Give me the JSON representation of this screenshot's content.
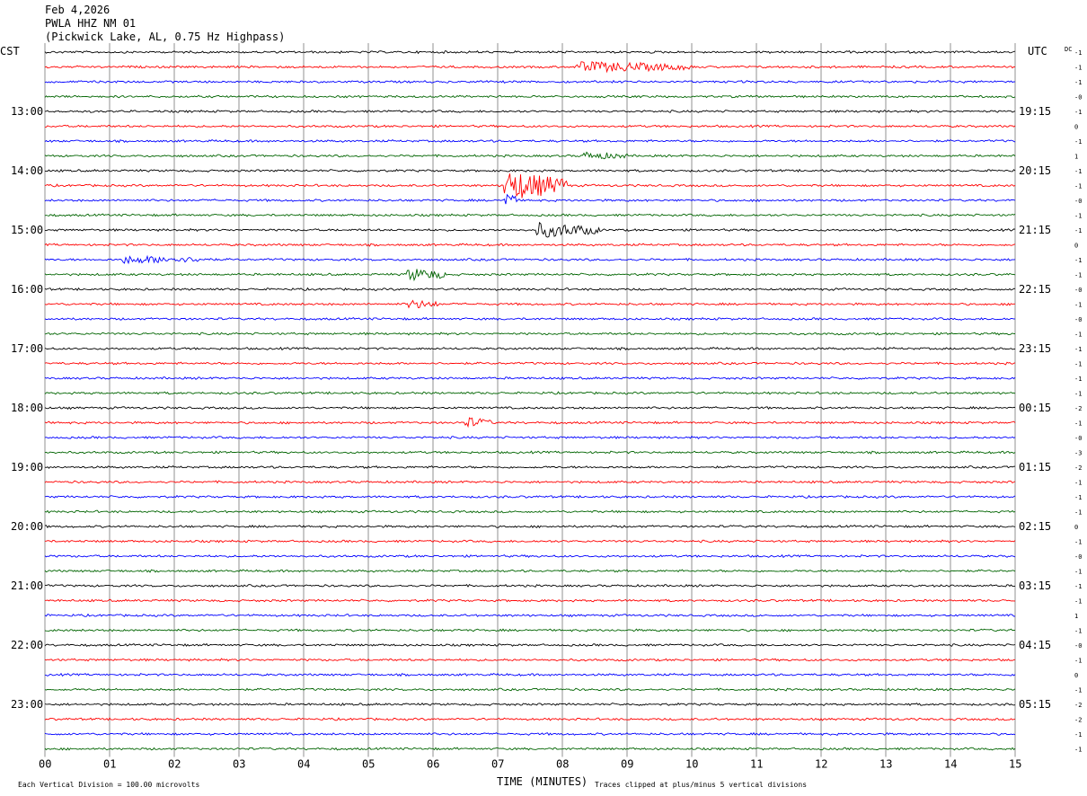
{
  "header": {
    "date": "Feb 4,2026",
    "station": "PWLA HHZ NM 01",
    "location": "(Pickwick Lake, AL, 0.75 Hz Highpass)"
  },
  "left_tz": "CST",
  "right_tz": "UTC",
  "dc_label": "DC",
  "chart_data": {
    "type": "helicorder",
    "title": "",
    "xlabel": "TIME (MINUTES)",
    "xlim": [
      0,
      15
    ],
    "x_ticks": [
      "00",
      "01",
      "02",
      "03",
      "04",
      "05",
      "06",
      "07",
      "08",
      "09",
      "10",
      "11",
      "12",
      "13",
      "14",
      "15"
    ],
    "trace_colors": [
      "#000000",
      "#ff0000",
      "#0000ff",
      "#006400"
    ],
    "trace_count": 48,
    "left_time_labels": [
      {
        "trace": 4,
        "label": "13:00"
      },
      {
        "trace": 8,
        "label": "14:00"
      },
      {
        "trace": 12,
        "label": "15:00"
      },
      {
        "trace": 16,
        "label": "16:00"
      },
      {
        "trace": 20,
        "label": "17:00"
      },
      {
        "trace": 24,
        "label": "18:00"
      },
      {
        "trace": 28,
        "label": "19:00"
      },
      {
        "trace": 32,
        "label": "20:00"
      },
      {
        "trace": 36,
        "label": "21:00"
      },
      {
        "trace": 40,
        "label": "22:00"
      },
      {
        "trace": 44,
        "label": "23:00"
      }
    ],
    "right_time_labels": [
      {
        "trace": 4,
        "label": "19:15"
      },
      {
        "trace": 8,
        "label": "20:15"
      },
      {
        "trace": 12,
        "label": "21:15"
      },
      {
        "trace": 16,
        "label": "22:15"
      },
      {
        "trace": 20,
        "label": "23:15"
      },
      {
        "trace": 24,
        "label": "00:15"
      },
      {
        "trace": 28,
        "label": "01:15"
      },
      {
        "trace": 32,
        "label": "02:15"
      },
      {
        "trace": 36,
        "label": "03:15"
      },
      {
        "trace": 40,
        "label": "04:15"
      },
      {
        "trace": 44,
        "label": "05:15"
      }
    ],
    "dc_offsets": [
      "-1",
      "-1",
      "-1",
      "-0",
      "-1",
      "0",
      "-1",
      "1",
      "-1",
      "-1",
      "-0",
      "-1",
      "-1",
      "0",
      "-1",
      "-1",
      "-0",
      "-1",
      "-0",
      "-1",
      "-1",
      "-1",
      "-1",
      "-1",
      "-2",
      "-1",
      "-0",
      "-3",
      "-2",
      "-1",
      "-1",
      "-1",
      "0",
      "-1",
      "-0",
      "-1",
      "-1",
      "-1",
      "1",
      "-1",
      "-0",
      "-1",
      "0",
      "-1",
      "-2",
      "-2",
      "-1",
      "-1"
    ],
    "events": [
      {
        "trace": 9,
        "start_min": 7.1,
        "end_min": 8.1,
        "amp": 5.5
      },
      {
        "trace": 10,
        "start_min": 7.1,
        "end_min": 7.3,
        "amp": 3.0
      },
      {
        "trace": 12,
        "start_min": 7.6,
        "end_min": 8.6,
        "amp": 2.6
      },
      {
        "trace": 15,
        "start_min": 5.6,
        "end_min": 6.2,
        "amp": 2.2
      },
      {
        "trace": 1,
        "start_min": 8.2,
        "end_min": 10.0,
        "amp": 1.8
      },
      {
        "trace": 25,
        "start_min": 6.5,
        "end_min": 6.9,
        "amp": 1.8
      },
      {
        "trace": 17,
        "start_min": 5.6,
        "end_min": 6.1,
        "amp": 1.5
      },
      {
        "trace": 14,
        "start_min": 1.2,
        "end_min": 2.6,
        "amp": 1.2
      },
      {
        "trace": 7,
        "start_min": 8.3,
        "end_min": 9.0,
        "amp": 1.2
      }
    ],
    "noise_level": 0.35,
    "grid": true
  },
  "footer": {
    "scale_note": "Each Vertical Division =  100.00 microvolts",
    "clip_note": "Traces clipped at plus/minus 5 vertical divisions"
  }
}
